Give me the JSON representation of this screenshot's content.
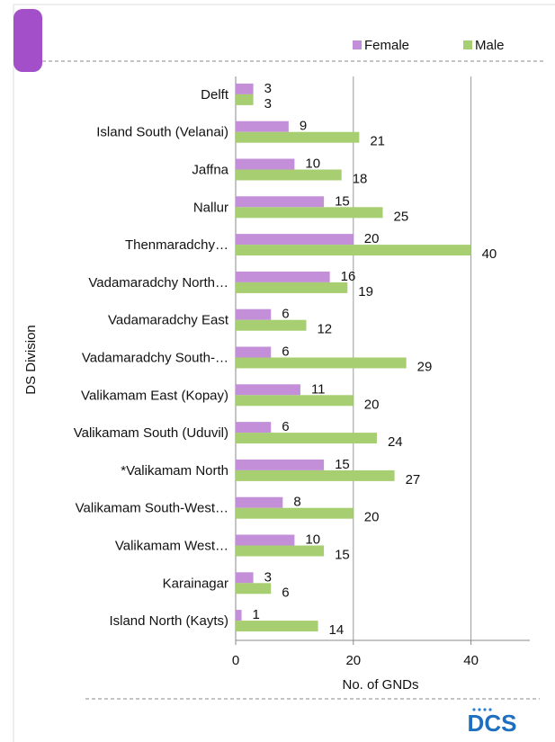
{
  "chart_data": {
    "type": "bar",
    "orientation": "horizontal",
    "categories": [
      "Delft",
      "Island South (Velanai)",
      "Jaffna",
      "Nallur",
      "Thenmaradchy…",
      "Vadamaradchy North…",
      "Vadamaradchy East",
      "Vadamaradchy South-…",
      "Valikamam East (Kopay)",
      "Valikamam South (Uduvil)",
      "*Valikamam North",
      "Valikamam South-West…",
      "Valikamam West…",
      "Karainagar",
      "Island North (Kayts)"
    ],
    "series": [
      {
        "name": "Female",
        "color": "#c38fd9",
        "values": [
          3,
          9,
          10,
          15,
          20,
          16,
          6,
          6,
          11,
          6,
          15,
          8,
          10,
          3,
          1
        ]
      },
      {
        "name": "Male",
        "color": "#a7ce70",
        "values": [
          3,
          21,
          18,
          25,
          40,
          19,
          12,
          29,
          20,
          24,
          27,
          20,
          15,
          6,
          14
        ]
      }
    ],
    "xlabel": "No. of GNDs",
    "ylabel": "DS Division",
    "xlim": [
      0,
      50
    ],
    "xticks": [
      0,
      20,
      40
    ],
    "grid": true,
    "legend": "top-right",
    "logo": "DCS"
  }
}
